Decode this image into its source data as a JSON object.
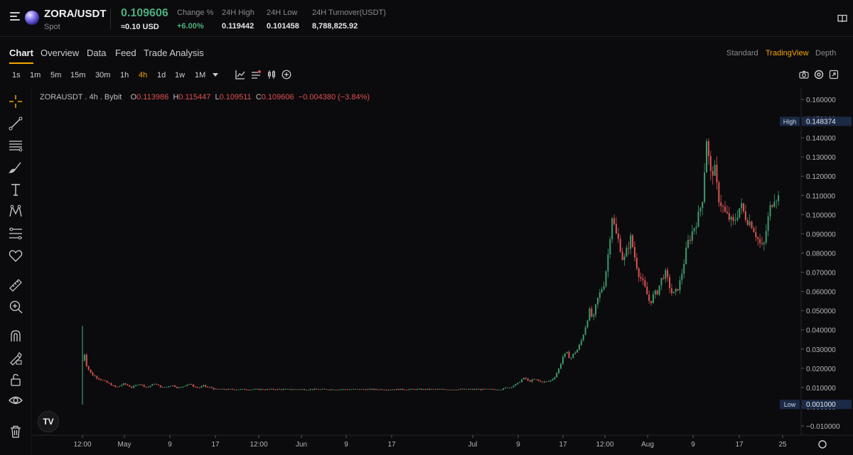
{
  "header": {
    "pair": "ZORA/USDT",
    "market_type": "Spot",
    "last_price": "0.109606",
    "usd_price": "≈0.10 USD",
    "stats": [
      {
        "label": "Change %",
        "value": "+6.00%"
      },
      {
        "label": "24H High",
        "value": "0.119442"
      },
      {
        "label": "24H Low",
        "value": "0.101458"
      },
      {
        "label": "24H Turnover(USDT)",
        "value": "8,788,825.92"
      }
    ]
  },
  "tabs": [
    "Chart",
    "Overview",
    "Data",
    "Feed",
    "Trade Analysis"
  ],
  "active_tab": "Chart",
  "views": [
    "Standard",
    "TradingView",
    "Depth"
  ],
  "active_view": "TradingView",
  "timeframes": [
    "1s",
    "1m",
    "5m",
    "15m",
    "30m",
    "1h",
    "4h",
    "1d",
    "1w",
    "1M"
  ],
  "active_timeframe": "4h",
  "legend": {
    "symbol": "ZORAUSDT . 4h . Bybit",
    "o_label": "O",
    "o": "0.113986",
    "h_label": "H",
    "h": "0.115447",
    "l_label": "L",
    "l": "0.109511",
    "c_label": "C",
    "c": "0.109606",
    "change": "−0.004380 (−3.84%)"
  },
  "tv_logo": "TV",
  "colors": {
    "up": "#3d9a6c",
    "down": "#d9534f",
    "accent": "#f7a600",
    "price_green": "#4caf7c"
  },
  "left_tools": [
    "crosshair-icon",
    "trendline-icon",
    "fib-icon",
    "brush-icon",
    "text-icon",
    "pattern-icon",
    "forecast-icon",
    "favorite-icon",
    "ruler-icon",
    "zoom-in-icon",
    "magnet-icon",
    "lock-drawing-icon",
    "lock-icon",
    "eye-icon",
    "trash-icon"
  ],
  "chart_data": {
    "type": "candlestick",
    "symbol": "ZORAUSDT",
    "interval": "4h",
    "exchange": "Bybit",
    "y_axis_ticks": [
      "0.160000",
      "0.150000",
      "0.140000",
      "0.130000",
      "0.120000",
      "0.110000",
      "0.100000",
      "0.090000",
      "0.080000",
      "0.070000",
      "0.060000",
      "0.050000",
      "0.040000",
      "0.030000",
      "0.020000",
      "0.010000",
      "0.000000",
      "−0.010000"
    ],
    "ylim": [
      -0.01,
      0.16
    ],
    "x_axis_ticks": [
      "12:00",
      "May",
      "9",
      "17",
      "12:00",
      "Jun",
      "9",
      "17",
      "Jul",
      "9",
      "17",
      "12:00",
      "Aug",
      "9",
      "17",
      "25"
    ],
    "high_marker": {
      "label": "High",
      "value": "0.148374"
    },
    "low_marker": {
      "label": "Low",
      "value": "0.001000"
    },
    "close_series": [
      [
        0,
        0.024
      ],
      [
        0.5,
        0.028
      ],
      [
        1,
        0.022
      ],
      [
        2,
        0.018
      ],
      [
        3,
        0.016
      ],
      [
        4,
        0.015
      ],
      [
        5,
        0.014
      ],
      [
        6,
        0.013
      ],
      [
        7,
        0.012
      ],
      [
        8,
        0.011
      ],
      [
        9,
        0.01
      ],
      [
        10,
        0.011
      ],
      [
        11,
        0.012
      ],
      [
        12,
        0.011
      ],
      [
        13,
        0.01
      ],
      [
        14,
        0.011
      ],
      [
        15,
        0.012
      ],
      [
        16,
        0.011
      ],
      [
        17,
        0.01
      ],
      [
        18,
        0.011
      ],
      [
        19,
        0.012
      ],
      [
        20,
        0.011
      ],
      [
        21,
        0.01
      ],
      [
        22,
        0.01
      ],
      [
        23,
        0.011
      ],
      [
        24,
        0.011
      ],
      [
        25,
        0.01
      ],
      [
        26,
        0.01
      ],
      [
        27,
        0.011
      ],
      [
        28,
        0.012
      ],
      [
        29,
        0.011
      ],
      [
        30,
        0.01
      ],
      [
        31,
        0.01
      ],
      [
        32,
        0.011
      ],
      [
        33,
        0.01
      ],
      [
        34,
        0.01
      ],
      [
        35,
        0.009
      ],
      [
        36,
        0.009
      ],
      [
        37,
        0.009
      ],
      [
        38,
        0.009
      ],
      [
        39,
        0.009
      ],
      [
        40,
        0.009
      ],
      [
        41,
        0.009
      ],
      [
        42,
        0.009
      ],
      [
        43,
        0.009
      ],
      [
        44,
        0.009
      ],
      [
        45,
        0.009
      ],
      [
        46,
        0.009
      ],
      [
        47,
        0.009
      ],
      [
        48,
        0.009
      ],
      [
        49,
        0.009
      ],
      [
        50,
        0.009
      ],
      [
        51,
        0.009
      ],
      [
        52,
        0.009
      ],
      [
        53,
        0.009
      ],
      [
        54,
        0.009
      ],
      [
        55,
        0.009
      ],
      [
        56,
        0.009
      ],
      [
        57,
        0.009
      ],
      [
        58,
        0.009
      ],
      [
        59,
        0.009
      ],
      [
        60,
        0.009
      ],
      [
        61,
        0.009
      ],
      [
        62,
        0.009
      ],
      [
        63,
        0.009
      ],
      [
        64,
        0.009
      ],
      [
        65,
        0.009
      ],
      [
        66,
        0.009
      ],
      [
        67,
        0.009
      ],
      [
        68,
        0.009
      ],
      [
        69,
        0.009
      ],
      [
        70,
        0.009
      ],
      [
        71,
        0.009
      ],
      [
        72,
        0.009
      ],
      [
        73,
        0.009
      ],
      [
        74,
        0.009
      ],
      [
        75,
        0.009
      ],
      [
        76,
        0.009
      ],
      [
        77,
        0.009
      ],
      [
        78,
        0.009
      ],
      [
        79,
        0.009
      ],
      [
        80,
        0.009
      ],
      [
        81,
        0.009
      ],
      [
        82,
        0.009
      ],
      [
        83,
        0.009
      ],
      [
        84,
        0.009
      ],
      [
        85,
        0.009
      ],
      [
        86,
        0.009
      ],
      [
        87,
        0.009
      ],
      [
        88,
        0.009
      ],
      [
        89,
        0.009
      ],
      [
        90,
        0.009
      ],
      [
        91,
        0.009
      ],
      [
        92,
        0.009
      ],
      [
        93,
        0.009
      ],
      [
        94,
        0.009
      ],
      [
        95,
        0.009
      ],
      [
        96,
        0.009
      ],
      [
        97,
        0.009
      ],
      [
        98,
        0.009
      ],
      [
        99,
        0.009
      ],
      [
        100,
        0.009
      ],
      [
        101,
        0.009
      ],
      [
        102,
        0.009
      ],
      [
        103,
        0.009
      ],
      [
        104,
        0.009
      ],
      [
        105,
        0.009
      ],
      [
        106,
        0.009
      ],
      [
        107,
        0.009
      ],
      [
        108,
        0.009
      ],
      [
        109,
        0.009
      ],
      [
        110,
        0.009
      ],
      [
        111,
        0.009
      ],
      [
        112,
        0.01
      ],
      [
        113,
        0.01
      ],
      [
        114,
        0.011
      ],
      [
        115,
        0.012
      ],
      [
        116,
        0.014
      ],
      [
        117,
        0.015
      ],
      [
        118,
        0.013
      ],
      [
        119,
        0.014
      ],
      [
        120,
        0.014
      ],
      [
        121,
        0.013
      ],
      [
        122,
        0.013
      ],
      [
        123,
        0.013
      ],
      [
        124,
        0.014
      ],
      [
        125,
        0.016
      ],
      [
        126,
        0.02
      ],
      [
        127,
        0.026
      ],
      [
        128,
        0.028
      ],
      [
        129,
        0.025
      ],
      [
        130,
        0.028
      ],
      [
        131,
        0.03
      ],
      [
        132,
        0.035
      ],
      [
        133,
        0.042
      ],
      [
        134,
        0.05
      ],
      [
        135,
        0.045
      ],
      [
        136,
        0.055
      ],
      [
        137,
        0.06
      ],
      [
        138,
        0.065
      ],
      [
        139,
        0.08
      ],
      [
        140,
        0.1
      ],
      [
        141,
        0.09
      ],
      [
        142,
        0.085
      ],
      [
        143,
        0.075
      ],
      [
        144,
        0.082
      ],
      [
        145,
        0.088
      ],
      [
        146,
        0.078
      ],
      [
        147,
        0.07
      ],
      [
        148,
        0.065
      ],
      [
        149,
        0.06
      ],
      [
        150,
        0.054
      ],
      [
        151,
        0.058
      ],
      [
        152,
        0.06
      ],
      [
        153,
        0.066
      ],
      [
        154,
        0.07
      ],
      [
        155,
        0.064
      ],
      [
        156,
        0.058
      ],
      [
        157,
        0.06
      ],
      [
        158,
        0.065
      ],
      [
        159,
        0.075
      ],
      [
        160,
        0.085
      ],
      [
        161,
        0.09
      ],
      [
        162,
        0.095
      ],
      [
        163,
        0.1
      ],
      [
        164,
        0.11
      ],
      [
        165,
        0.14
      ],
      [
        166,
        0.12
      ],
      [
        167,
        0.125
      ],
      [
        168,
        0.11
      ],
      [
        169,
        0.105
      ],
      [
        170,
        0.1
      ],
      [
        171,
        0.098
      ],
      [
        172,
        0.095
      ],
      [
        173,
        0.1
      ],
      [
        174,
        0.105
      ],
      [
        175,
        0.1
      ],
      [
        176,
        0.097
      ],
      [
        177,
        0.095
      ],
      [
        178,
        0.09
      ],
      [
        179,
        0.085
      ],
      [
        180,
        0.082
      ],
      [
        181,
        0.095
      ],
      [
        182,
        0.105
      ],
      [
        183,
        0.11
      ],
      [
        184,
        0.109
      ]
    ]
  }
}
